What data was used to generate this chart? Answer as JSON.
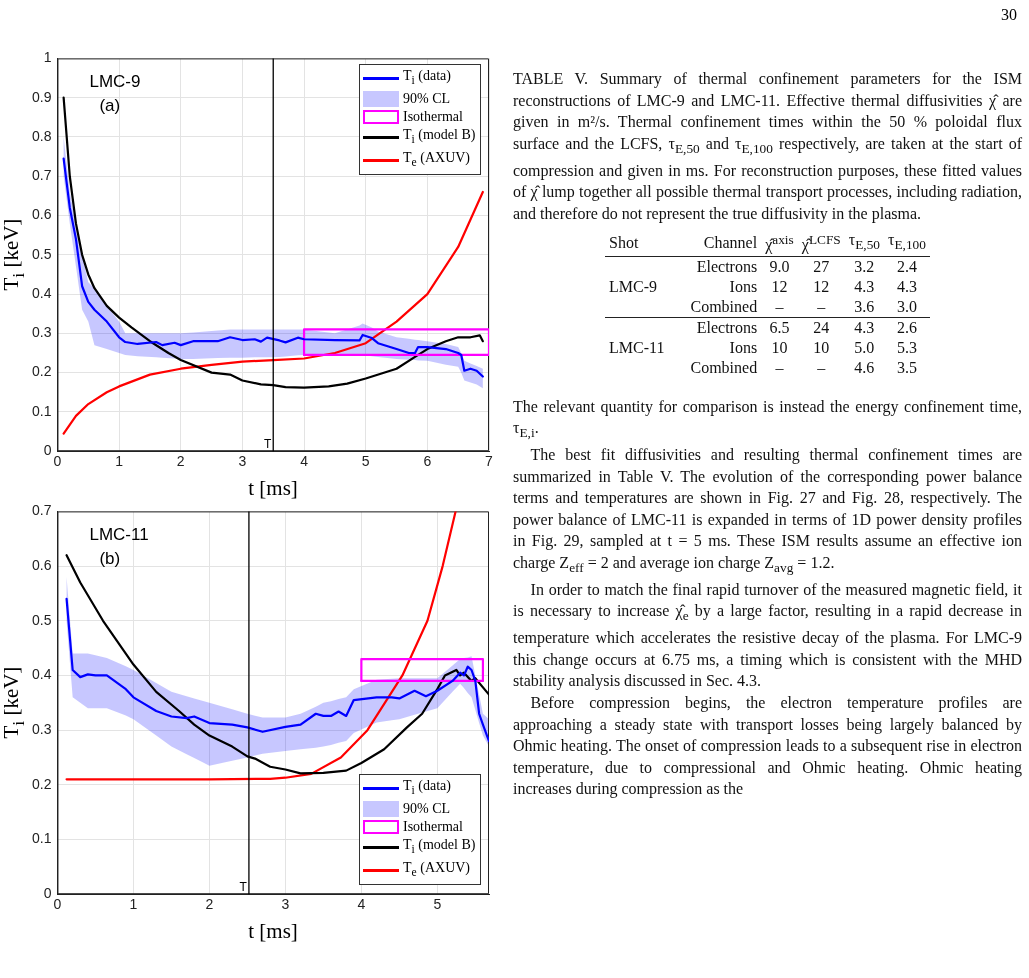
{
  "chart_data": [
    {
      "type": "line",
      "xlabel": "t [ms]",
      "ylabel": "T$_{i}$ [keV]",
      "xlim": [
        0,
        7
      ],
      "xticks": [
        0,
        1,
        2,
        3,
        4,
        5,
        6,
        7
      ],
      "ylim": [
        0,
        1
      ],
      "yticks": [
        0,
        0.1,
        0.2,
        0.3,
        0.4,
        0.5,
        0.6,
        0.7,
        0.8,
        0.9,
        1
      ],
      "grid": true,
      "legend": "top right",
      "annotations": [
        "LMC-9",
        "(a)",
        "90% CL"
      ],
      "ref_lines": [
        {
          "axis": "x",
          "value": 3.5,
          "label": "T",
          "color": "#000000"
        }
      ],
      "series": [
        {
          "name": "T$_{i}$ (data)",
          "type": "line",
          "color": "#0000ff",
          "x": [
            0.1,
            0.2,
            0.3,
            0.4,
            0.5,
            0.6,
            0.8,
            1.0,
            1.1,
            1.3,
            1.6,
            1.7,
            1.9,
            2.0,
            2.2,
            2.6,
            2.8,
            3.0,
            3.2,
            3.3,
            3.4,
            3.6,
            3.7,
            3.9,
            4.0,
            4.5,
            4.9,
            4.95,
            5.1,
            5.2,
            5.5,
            5.7,
            5.8,
            5.85,
            6.0,
            6.3,
            6.5,
            6.55,
            6.6,
            6.7,
            6.8,
            6.9
          ],
          "values": [
            0.745,
            0.62,
            0.54,
            0.42,
            0.38,
            0.36,
            0.33,
            0.29,
            0.278,
            0.273,
            0.278,
            0.27,
            0.276,
            0.27,
            0.28,
            0.28,
            0.29,
            0.283,
            0.285,
            0.279,
            0.289,
            0.282,
            0.277,
            0.289,
            0.285,
            0.283,
            0.282,
            0.296,
            0.288,
            0.275,
            0.26,
            0.25,
            0.25,
            0.265,
            0.265,
            0.26,
            0.25,
            0.245,
            0.205,
            0.21,
            0.205,
            0.19
          ],
          "lower": [
            0.7,
            0.58,
            0.47,
            0.36,
            0.33,
            0.27,
            0.26,
            0.25,
            0.245,
            0.242,
            0.239,
            0.238,
            0.236,
            0.235,
            0.235,
            0.237,
            0.238,
            0.238,
            0.239,
            0.239,
            0.239,
            0.24,
            0.241,
            0.244,
            0.245,
            0.245,
            0.245,
            0.245,
            0.242,
            0.24,
            0.235,
            0.233,
            0.232,
            0.231,
            0.23,
            0.22,
            0.215,
            0.2,
            0.18,
            0.175,
            0.17,
            0.16
          ],
          "upper": [
            0.8,
            0.66,
            0.58,
            0.5,
            0.43,
            0.415,
            0.37,
            0.33,
            0.3,
            0.3,
            0.3,
            0.3,
            0.3,
            0.3,
            0.302,
            0.307,
            0.31,
            0.31,
            0.31,
            0.31,
            0.31,
            0.31,
            0.31,
            0.31,
            0.31,
            0.3,
            0.32,
            0.325,
            0.315,
            0.305,
            0.29,
            0.286,
            0.284,
            0.283,
            0.28,
            0.273,
            0.265,
            0.25,
            0.23,
            0.223,
            0.217,
            0.21
          ]
        },
        {
          "name": "Isothermal",
          "type": "line",
          "color": "#ff00ff",
          "x": [
            4,
            4,
            7,
            7
          ],
          "values": [
            0.245,
            0.31,
            0.31,
            0.245
          ]
        },
        {
          "type": "line",
          "color": "#ff00ff",
          "x": [
            4,
            7
          ],
          "values": [
            0.245,
            0.245
          ]
        },
        {
          "name": "T$_{i}$ (model B)",
          "type": "line",
          "color": "#000000",
          "x": [
            0.1,
            0.2,
            0.3,
            0.4,
            0.5,
            0.6,
            0.8,
            1.0,
            1.2,
            1.5,
            1.8,
            2.0,
            2.5,
            2.8,
            3.0,
            3.3,
            3.5,
            3.7,
            4.0,
            4.4,
            4.7,
            5.0,
            5.5,
            5.8,
            6.0,
            6.3,
            6.5,
            6.7,
            6.85,
            6.9
          ],
          "values": [
            0.9,
            0.7,
            0.58,
            0.5,
            0.45,
            0.415,
            0.37,
            0.34,
            0.315,
            0.28,
            0.25,
            0.232,
            0.2,
            0.195,
            0.18,
            0.17,
            0.168,
            0.163,
            0.162,
            0.165,
            0.172,
            0.185,
            0.21,
            0.24,
            0.26,
            0.28,
            0.29,
            0.29,
            0.295,
            0.28
          ]
        },
        {
          "name": "T$_{e}$ (AXUV)",
          "type": "line",
          "color": "#ff0000",
          "x": [
            0.1,
            0.3,
            0.5,
            0.8,
            1.0,
            1.5,
            2.0,
            2.5,
            3.0,
            3.5,
            4.0,
            4.5,
            5.0,
            5.5,
            6.0,
            6.5,
            6.9
          ],
          "values": [
            0.045,
            0.09,
            0.12,
            0.15,
            0.165,
            0.195,
            0.21,
            0.22,
            0.228,
            0.232,
            0.236,
            0.25,
            0.275,
            0.33,
            0.4,
            0.52,
            0.66
          ]
        }
      ]
    },
    {
      "type": "line",
      "xlabel": "t [ms]",
      "ylabel": "T$_{i}$ [keV]",
      "xlim": [
        0,
        5.68
      ],
      "xticks": [
        0,
        1,
        2,
        3,
        4,
        5
      ],
      "ylim": [
        0,
        0.7
      ],
      "yticks": [
        0,
        0.1,
        0.2,
        0.3,
        0.4,
        0.5,
        0.6,
        0.7
      ],
      "grid": true,
      "legend": "bottom right",
      "annotations": [
        "LMC-11",
        "(b)",
        "90% CL"
      ],
      "ref_lines": [
        {
          "axis": "x",
          "value": 2.52,
          "label": "T",
          "color": "#000000"
        }
      ],
      "series": [
        {
          "name": "T$_{i}$ (data)",
          "type": "line",
          "color": "#0000ff",
          "x": [
            0.12,
            0.2,
            0.3,
            0.4,
            0.5,
            0.65,
            0.9,
            1.0,
            1.3,
            1.5,
            1.7,
            1.8,
            2.0,
            2.3,
            2.5,
            2.7,
            3.0,
            3.2,
            3.4,
            3.5,
            3.6,
            3.7,
            3.8,
            3.9,
            4.2,
            4.4,
            4.5,
            4.7,
            4.85,
            5.0,
            5.2,
            5.3,
            5.35,
            5.4,
            5.45,
            5.5,
            5.55,
            5.6,
            5.68
          ],
          "values": [
            0.54,
            0.41,
            0.397,
            0.402,
            0.4,
            0.4,
            0.375,
            0.36,
            0.335,
            0.325,
            0.322,
            0.325,
            0.313,
            0.31,
            0.305,
            0.297,
            0.306,
            0.31,
            0.33,
            0.326,
            0.326,
            0.334,
            0.326,
            0.355,
            0.36,
            0.36,
            0.358,
            0.372,
            0.362,
            0.372,
            0.39,
            0.405,
            0.4,
            0.416,
            0.41,
            0.39,
            0.33,
            0.31,
            0.28
          ],
          "lower": [
            0.5,
            0.36,
            0.35,
            0.34,
            0.34,
            0.34,
            0.327,
            0.32,
            0.29,
            0.27,
            0.256,
            0.249,
            0.235,
            0.244,
            0.25,
            0.257,
            0.262,
            0.265,
            0.268,
            0.27,
            0.273,
            0.277,
            0.28,
            0.295,
            0.314,
            0.318,
            0.32,
            0.328,
            0.334,
            0.34,
            0.37,
            0.385,
            0.377,
            0.368,
            0.36,
            0.337,
            0.313,
            0.29,
            0.27
          ],
          "upper": [
            0.58,
            0.44,
            0.44,
            0.44,
            0.437,
            0.432,
            0.417,
            0.41,
            0.386,
            0.37,
            0.362,
            0.358,
            0.35,
            0.338,
            0.33,
            0.323,
            0.323,
            0.33,
            0.343,
            0.35,
            0.353,
            0.357,
            0.36,
            0.375,
            0.392,
            0.394,
            0.395,
            0.395,
            0.395,
            0.395,
            0.418,
            0.43,
            0.432,
            0.433,
            0.435,
            0.4,
            0.365,
            0.33,
            0.32
          ]
        },
        {
          "name": "Isothermal",
          "type": "line",
          "color": "#ff00ff",
          "x": [
            4,
            4,
            5.6,
            5.6
          ],
          "values": [
            0.39,
            0.43,
            0.43,
            0.39
          ]
        },
        {
          "type": "line",
          "color": "#ff00ff",
          "x": [
            4,
            5.6
          ],
          "values": [
            0.39,
            0.39
          ]
        },
        {
          "name": "T$_{i}$ (model B)",
          "type": "line",
          "color": "#000000",
          "x": [
            0.12,
            0.3,
            0.6,
            1.0,
            1.3,
            1.6,
            1.8,
            2.0,
            2.3,
            2.5,
            2.6,
            2.8,
            3.0,
            3.2,
            3.5,
            3.8,
            4.0,
            4.3,
            4.6,
            4.8,
            5.0,
            5.1,
            5.25,
            5.3,
            5.35,
            5.45,
            5.5,
            5.68
          ],
          "values": [
            0.62,
            0.57,
            0.5,
            0.42,
            0.37,
            0.335,
            0.31,
            0.29,
            0.27,
            0.252,
            0.248,
            0.233,
            0.228,
            0.221,
            0.222,
            0.226,
            0.24,
            0.265,
            0.305,
            0.33,
            0.375,
            0.4,
            0.41,
            0.4,
            0.405,
            0.39,
            0.395,
            0.365
          ]
        },
        {
          "name": "T$_{e}$ (AXUV)",
          "type": "line",
          "color": "#ff0000",
          "x": [
            0.12,
            1,
            2,
            2.8,
            3.0,
            3.34,
            3.73,
            4.08,
            4.54,
            4.87,
            5.07,
            5.24
          ],
          "values": [
            0.21,
            0.21,
            0.21,
            0.211,
            0.213,
            0.22,
            0.25,
            0.3,
            0.4,
            0.5,
            0.6,
            0.7
          ]
        }
      ]
    },
    {
      "type": "other",
      "annotations": [
        "30",
        "TABLE V. Summary of thermal confinement parameters for the ISM reconstructions of LMC-9 and LMC-11. Effective thermal diffusivities χ̂ are given in m²/s. Thermal confinement times within the 50 % poloidal flux surface and the LCFS, τ$_{E,50}$ and τ$_{E,100}$ respectively, are taken at the start of compression and given in ms. For reconstruction purposes, these fitted values of χ̂ lump together all possible thermal transport processes, including radiation, and therefore do not represent the true diffusivity in the plasma.",
        "Shot\tChannel\tχ̂$^{axis}$\tχ̂$^{LCFS}$\tτ$_{E,50}$\tτ$_{E,100}$",
        "\tElectrons\t9.0\t27\t3.2\t2.4",
        "LMC-9\tIons\t12\t12\t4.3\t4.3",
        "\tCombined\t–\t–\t3.6\t3.0",
        "\tElectrons\t6.5\t24\t4.3\t2.6",
        "LMC-11\tIons\t10\t10\t5.0\t5.3",
        "\tCombined\t–\t–\t4.6\t3.5",
        "The relevant quantity for comparison is instead the energy confinement time, τ$_{E,i}$.",
        "The best fit diffusivities and resulting thermal confinement times are summarized in Table V. The evolution of the corresponding power balance terms and temperatures are shown in Fig. 27 and Fig. 28, respectively. The power balance of LMC-11 is expanded in terms of 1D power density profiles in Fig. 29, sampled at t = 5 ms. These ISM results assume an effective ion charge Z$_{eff}$ = 2 and average ion charge Z$_{avg}$ = 1.2.",
        "In order to match the final rapid turnover of the measured magnetic field, it is necessary to increase χ̂$_{e}$ by a large factor, resulting in a rapid decrease in temperature which accelerates the resistive decay of the plasma. For LMC-9 this change occurs at 6.75 ms, a timing which is consistent with the MHD stability analysis discussed in Sec. 4.3.",
        "Before compression begins, the electron temperature profiles are approaching a steady state with transport losses being largely balanced by Ohmic heating. The onset of compression leads to a subsequent rise in electron temperature, due to compressional and Ohmic heating. Ohmic heating increases during compression as the"
      ]
    }
  ]
}
